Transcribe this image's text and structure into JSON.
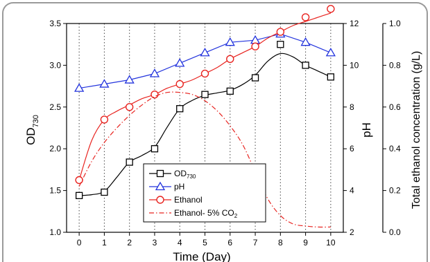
{
  "chart_data": {
    "type": "line",
    "x": [
      0,
      1,
      2,
      3,
      4,
      5,
      6,
      7,
      8,
      9,
      10
    ],
    "xlabel": "Time (Day)",
    "xlim": [
      -0.5,
      10.5
    ],
    "x_ticks": [
      "0",
      "1",
      "2",
      "3",
      "4",
      "5",
      "6",
      "7",
      "8",
      "9",
      "10"
    ],
    "ylabel_left": {
      "main": "OD",
      "sub": "730"
    },
    "ylim_left": [
      1.0,
      3.5
    ],
    "yticks_left": [
      "1.0",
      "1.5",
      "2.0",
      "2.5",
      "3.0",
      "3.5"
    ],
    "ylabel_mid": "pH",
    "ylim_mid": [
      2,
      12
    ],
    "yticks_mid": [
      "2",
      "4",
      "6",
      "8",
      "10",
      "12"
    ],
    "ylabel_right": "Total ethanol concentration (g/L)",
    "ylim_right": [
      0.0,
      1.0
    ],
    "yticks_right": [
      "0.0",
      "0.2",
      "0.4",
      "0.6",
      "0.8",
      "1.0"
    ],
    "grid": "vertical dotted",
    "legend_position": "lower-center",
    "series": [
      {
        "name": "OD",
        "name_sub": "730",
        "axis": "left",
        "color": "#000000",
        "marker": "square",
        "style": "solid",
        "values": [
          1.44,
          1.48,
          1.84,
          2.0,
          2.48,
          2.65,
          2.69,
          2.85,
          3.25,
          3.0,
          2.86
        ],
        "curve": [
          [
            0,
            1.44
          ],
          [
            0.5,
            1.45
          ],
          [
            1,
            1.49
          ],
          [
            1.5,
            1.66
          ],
          [
            2,
            1.84
          ],
          [
            2.5,
            1.92
          ],
          [
            3,
            2.02
          ],
          [
            3.5,
            2.26
          ],
          [
            4,
            2.48
          ],
          [
            4.5,
            2.58
          ],
          [
            5,
            2.64
          ],
          [
            5.5,
            2.67
          ],
          [
            6,
            2.7
          ],
          [
            6.5,
            2.77
          ],
          [
            7,
            2.88
          ],
          [
            7.5,
            3.05
          ],
          [
            8,
            3.14
          ],
          [
            8.5,
            3.1
          ],
          [
            9,
            3.0
          ],
          [
            9.5,
            2.93
          ],
          [
            10,
            2.86
          ]
        ]
      },
      {
        "name": "pH",
        "axis": "mid",
        "color": "#2233dd",
        "marker": "triangle",
        "style": "solid",
        "values": [
          8.9,
          9.1,
          9.3,
          9.6,
          10.1,
          10.6,
          11.1,
          11.2,
          11.5,
          11.1,
          10.6
        ]
      },
      {
        "name": "Ethanol",
        "axis": "right",
        "color": "#e8231f",
        "marker": "circle",
        "style": "solid",
        "values": [
          0.25,
          0.54,
          0.6,
          0.66,
          0.71,
          0.76,
          0.83,
          0.89,
          0.96,
          1.03,
          1.07
        ],
        "curve": [
          [
            0,
            0.25
          ],
          [
            0.5,
            0.44
          ],
          [
            1,
            0.54
          ],
          [
            1.5,
            0.58
          ],
          [
            2,
            0.61
          ],
          [
            2.5,
            0.64
          ],
          [
            3,
            0.66
          ],
          [
            3.5,
            0.69
          ],
          [
            4,
            0.71
          ],
          [
            4.5,
            0.73
          ],
          [
            5,
            0.76
          ],
          [
            5.5,
            0.79
          ],
          [
            6,
            0.83
          ],
          [
            6.5,
            0.86
          ],
          [
            7,
            0.89
          ],
          [
            7.5,
            0.93
          ],
          [
            8,
            0.96
          ],
          [
            8.5,
            0.99
          ],
          [
            9,
            1.01
          ],
          [
            9.5,
            1.03
          ],
          [
            10,
            1.05
          ]
        ]
      },
      {
        "name": "Ethanol- 5% CO",
        "name_sub": "2",
        "axis": "right",
        "color": "#e8231f",
        "marker": "none",
        "style": "dash-dot",
        "curve": [
          [
            0,
            0.22
          ],
          [
            0.5,
            0.34
          ],
          [
            1,
            0.43
          ],
          [
            1.5,
            0.5
          ],
          [
            2,
            0.56
          ],
          [
            2.5,
            0.61
          ],
          [
            3,
            0.65
          ],
          [
            3.5,
            0.67
          ],
          [
            4,
            0.67
          ],
          [
            4.5,
            0.66
          ],
          [
            5,
            0.63
          ],
          [
            5.5,
            0.58
          ],
          [
            6,
            0.51
          ],
          [
            6.5,
            0.42
          ],
          [
            7,
            0.29
          ],
          [
            7.5,
            0.16
          ],
          [
            8,
            0.08
          ],
          [
            8.5,
            0.04
          ],
          [
            9,
            0.03
          ],
          [
            9.5,
            0.025
          ],
          [
            10,
            0.025
          ]
        ]
      }
    ]
  }
}
